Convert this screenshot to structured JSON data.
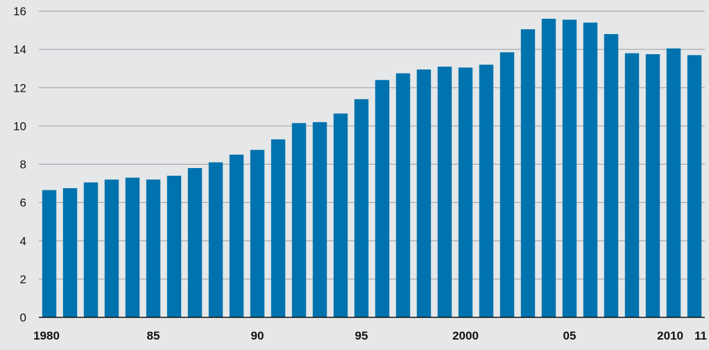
{
  "chart_data": {
    "type": "bar",
    "x": [
      1980,
      1981,
      1982,
      1983,
      1984,
      1985,
      1986,
      1987,
      1988,
      1989,
      1990,
      1991,
      1992,
      1993,
      1994,
      1995,
      1996,
      1997,
      1998,
      1999,
      2000,
      2001,
      2002,
      2003,
      2004,
      2005,
      2006,
      2007,
      2008,
      2009,
      2010,
      2011
    ],
    "values": [
      6.65,
      6.75,
      7.05,
      7.2,
      7.3,
      7.2,
      7.4,
      7.8,
      8.1,
      8.5,
      8.75,
      9.3,
      10.15,
      10.2,
      10.65,
      11.4,
      12.4,
      12.75,
      12.95,
      13.1,
      13.05,
      13.2,
      13.85,
      15.05,
      15.6,
      15.55,
      15.4,
      14.8,
      13.8,
      13.75,
      14.05,
      13.7
    ],
    "xtick_labels": [
      {
        "year": 1980,
        "label": "1980"
      },
      {
        "year": 1985,
        "label": "85"
      },
      {
        "year": 1990,
        "label": "90"
      },
      {
        "year": 1995,
        "label": "95"
      },
      {
        "year": 2000,
        "label": "2000"
      },
      {
        "year": 2005,
        "label": "05"
      },
      {
        "year": 2010,
        "label": "2010"
      },
      {
        "year": 2011,
        "label": "11"
      }
    ],
    "yticks": [
      "0",
      "2",
      "4",
      "6",
      "8",
      "10",
      "12",
      "14",
      "16"
    ],
    "ylim": [
      0,
      16
    ],
    "grid": true,
    "bar_color": "#0073ae",
    "background_color": "#e6e7e8",
    "grid_color": "#9a9ca0"
  }
}
